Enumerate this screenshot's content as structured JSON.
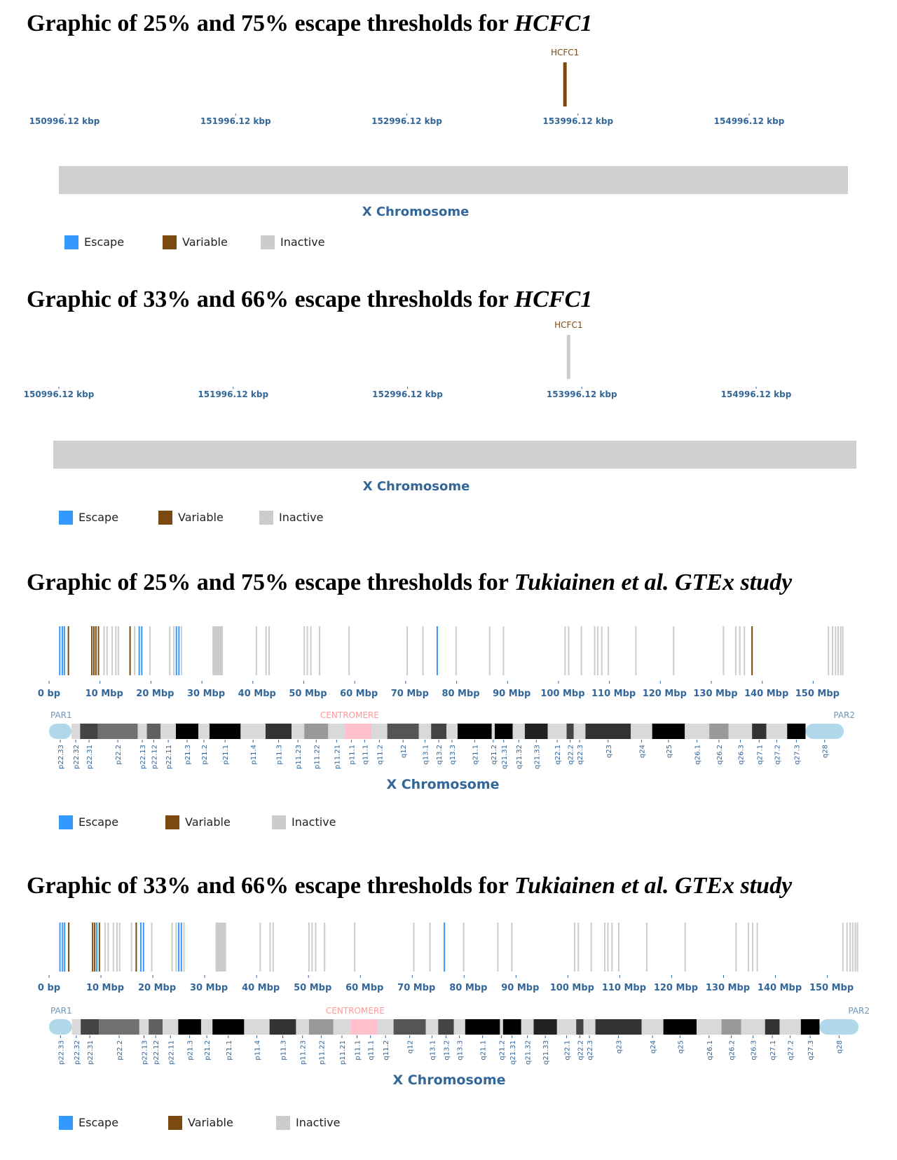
{
  "colors": {
    "escape": "#3399ff",
    "variable": "#7a4a10",
    "inactive": "#cccccc",
    "axis_text": "#336699",
    "chrom_bar": "#d0d0d0",
    "par": "#b0d8ea",
    "centromere": "#ffc0cb",
    "centromere_text": "#ff9999",
    "par_text": "#6f97b8"
  },
  "legend": {
    "escape": "Escape",
    "variable": "Variable",
    "inactive": "Inactive"
  },
  "chromosome_label": "X Chromosome",
  "panels": [
    {
      "title_pre": "Graphic of 25% and 75% escape thresholds for ",
      "title_em": "HCFC1",
      "gene_label": "HCFC1"
    },
    {
      "title_pre": "Graphic of 33% and 66% escape thresholds for ",
      "title_em": "HCFC1",
      "gene_label": "HCFC1"
    },
    {
      "title_pre": "Graphic of 25% and 75% escape thresholds for ",
      "title_em": "Tukiainen et al. GTEx study"
    },
    {
      "title_pre": "Graphic of 33% and 66% escape thresholds for ",
      "title_em": "Tukiainen et al. GTEx study"
    }
  ],
  "chart_data": [
    {
      "type": "ideogram",
      "view": "zoomed",
      "x_ticks": [
        "150996.12 kbp",
        "151996.12 kbp",
        "152996.12 kbp",
        "153996.12 kbp",
        "154996.12 kbp"
      ],
      "x_tick_values_kbp": [
        150996.12,
        151996.12,
        152996.12,
        153996.12,
        154996.12
      ],
      "genes": [
        {
          "name": "HCFC1",
          "position_kbp": 153920,
          "status": "variable"
        }
      ]
    },
    {
      "type": "ideogram",
      "view": "zoomed",
      "x_ticks": [
        "150996.12 kbp",
        "151996.12 kbp",
        "152996.12 kbp",
        "153996.12 kbp",
        "154996.12 kbp"
      ],
      "x_tick_values_kbp": [
        150996.12,
        151996.12,
        152996.12,
        153996.12,
        154996.12
      ],
      "genes": [
        {
          "name": "HCFC1",
          "position_kbp": 153920,
          "status": "inactive"
        }
      ]
    },
    {
      "type": "ideogram",
      "view": "whole",
      "x_ticks": [
        "0 bp",
        "10 Mbp",
        "20 Mbp",
        "30 Mbp",
        "40 Mbp",
        "50 Mbp",
        "60 Mbp",
        "70 Mbp",
        "80 Mbp",
        "90 Mbp",
        "100 Mbp",
        "110 Mbp",
        "120 Mbp",
        "130 Mbp",
        "140 Mbp",
        "150 Mbp"
      ],
      "region_labels": {
        "left": "PAR1",
        "center": "CENTROMERE",
        "right": "PAR2"
      },
      "markers_mbp": [
        [
          2.1,
          "escape"
        ],
        [
          2.6,
          "escape"
        ],
        [
          3.0,
          "escape"
        ],
        [
          3.8,
          "variable"
        ],
        [
          8.4,
          "variable"
        ],
        [
          8.8,
          "variable"
        ],
        [
          9.2,
          "variable"
        ],
        [
          9.7,
          "variable"
        ],
        [
          10.8,
          "inactive"
        ],
        [
          11.4,
          "inactive"
        ],
        [
          12.4,
          "inactive"
        ],
        [
          13.1,
          "inactive"
        ],
        [
          13.6,
          "inactive"
        ],
        [
          15.9,
          "variable"
        ],
        [
          16.8,
          "inactive"
        ],
        [
          17.7,
          "escape"
        ],
        [
          18.2,
          "escape"
        ],
        [
          19.8,
          "inactive"
        ],
        [
          23.7,
          "inactive"
        ],
        [
          24.5,
          "inactive"
        ],
        [
          25.0,
          "escape"
        ],
        [
          25.5,
          "escape"
        ],
        [
          26.0,
          "inactive"
        ],
        [
          33.1,
          "inactive"
        ],
        [
          40.7,
          "inactive"
        ],
        [
          42.6,
          "inactive"
        ],
        [
          43.2,
          "inactive"
        ],
        [
          50.1,
          "inactive"
        ],
        [
          50.7,
          "inactive"
        ],
        [
          51.4,
          "inactive"
        ],
        [
          53.1,
          "inactive"
        ],
        [
          58.9,
          "inactive"
        ],
        [
          70.3,
          "inactive"
        ],
        [
          73.4,
          "inactive"
        ],
        [
          76.2,
          "escape"
        ],
        [
          79.9,
          "inactive"
        ],
        [
          86.5,
          "inactive"
        ],
        [
          89.2,
          "inactive"
        ],
        [
          101.3,
          "inactive"
        ],
        [
          102.0,
          "inactive"
        ],
        [
          104.5,
          "inactive"
        ],
        [
          107.1,
          "inactive"
        ],
        [
          107.7,
          "inactive"
        ],
        [
          108.5,
          "inactive"
        ],
        [
          109.8,
          "inactive"
        ],
        [
          115.2,
          "inactive"
        ],
        [
          122.6,
          "inactive"
        ],
        [
          132.4,
          "inactive"
        ],
        [
          134.8,
          "inactive"
        ],
        [
          135.6,
          "inactive"
        ],
        [
          136.5,
          "inactive"
        ],
        [
          138.0,
          "variable"
        ],
        [
          153.0,
          "inactive"
        ],
        [
          153.8,
          "inactive"
        ],
        [
          154.4,
          "inactive"
        ],
        [
          154.9,
          "inactive"
        ],
        [
          155.4,
          "inactive"
        ],
        [
          155.8,
          "inactive"
        ]
      ],
      "bands": [
        "p22.33",
        "p22.32",
        "p22.31",
        "p22.2",
        "p22.13",
        "p22.12",
        "p22.11",
        "p21.3",
        "p21.2",
        "p21.1",
        "p11.4",
        "p11.3",
        "p11.23",
        "p11.22",
        "p11.21",
        "p11.1",
        "q11.1",
        "q11.2",
        "q12",
        "q13.1",
        "q13.2",
        "q13.3",
        "q21.1",
        "q21.2",
        "q21.31",
        "q21.32",
        "q21.33",
        "q22.1",
        "q22.2",
        "q22.3",
        "q23",
        "q24",
        "q25",
        "q26.1",
        "q26.2",
        "q26.3",
        "q27.1",
        "q27.2",
        "q27.3",
        "q28"
      ]
    },
    {
      "type": "ideogram",
      "view": "whole",
      "x_ticks": [
        "0 bp",
        "10 Mbp",
        "20 Mbp",
        "30 Mbp",
        "40 Mbp",
        "50 Mbp",
        "60 Mbp",
        "70 Mbp",
        "80 Mbp",
        "90 Mbp",
        "100 Mbp",
        "110 Mbp",
        "120 Mbp",
        "130 Mbp",
        "140 Mbp",
        "150 Mbp"
      ],
      "region_labels": {
        "left": "PAR1",
        "center": "CENTROMERE",
        "right": "PAR2"
      },
      "markers_mbp": [
        [
          2.1,
          "escape"
        ],
        [
          2.6,
          "escape"
        ],
        [
          3.0,
          "escape"
        ],
        [
          3.8,
          "variable"
        ],
        [
          8.4,
          "variable"
        ],
        [
          8.8,
          "variable"
        ],
        [
          9.2,
          "escape"
        ],
        [
          9.7,
          "variable"
        ],
        [
          10.8,
          "inactive"
        ],
        [
          11.4,
          "inactive"
        ],
        [
          12.4,
          "inactive"
        ],
        [
          13.1,
          "inactive"
        ],
        [
          13.6,
          "inactive"
        ],
        [
          15.9,
          "inactive"
        ],
        [
          16.8,
          "variable"
        ],
        [
          17.7,
          "escape"
        ],
        [
          18.2,
          "escape"
        ],
        [
          19.8,
          "inactive"
        ],
        [
          23.7,
          "inactive"
        ],
        [
          24.5,
          "inactive"
        ],
        [
          25.0,
          "escape"
        ],
        [
          25.5,
          "escape"
        ],
        [
          26.0,
          "inactive"
        ],
        [
          33.1,
          "inactive"
        ],
        [
          40.7,
          "inactive"
        ],
        [
          42.6,
          "inactive"
        ],
        [
          43.2,
          "inactive"
        ],
        [
          50.1,
          "inactive"
        ],
        [
          50.7,
          "inactive"
        ],
        [
          51.4,
          "inactive"
        ],
        [
          53.1,
          "inactive"
        ],
        [
          58.9,
          "inactive"
        ],
        [
          70.3,
          "inactive"
        ],
        [
          73.4,
          "inactive"
        ],
        [
          76.2,
          "escape"
        ],
        [
          79.9,
          "inactive"
        ],
        [
          86.5,
          "inactive"
        ],
        [
          89.2,
          "inactive"
        ],
        [
          101.3,
          "inactive"
        ],
        [
          102.0,
          "inactive"
        ],
        [
          104.5,
          "inactive"
        ],
        [
          107.1,
          "inactive"
        ],
        [
          107.7,
          "inactive"
        ],
        [
          108.5,
          "inactive"
        ],
        [
          109.8,
          "inactive"
        ],
        [
          115.2,
          "inactive"
        ],
        [
          122.6,
          "inactive"
        ],
        [
          132.4,
          "inactive"
        ],
        [
          134.8,
          "inactive"
        ],
        [
          135.6,
          "inactive"
        ],
        [
          136.5,
          "inactive"
        ],
        [
          153.0,
          "inactive"
        ],
        [
          153.8,
          "inactive"
        ],
        [
          154.4,
          "inactive"
        ],
        [
          154.9,
          "inactive"
        ],
        [
          155.4,
          "inactive"
        ],
        [
          155.8,
          "inactive"
        ]
      ],
      "bands": [
        "p22.33",
        "p22.32",
        "p22.31",
        "p22.2",
        "p22.13",
        "p22.12",
        "p22.11",
        "p21.3",
        "p21.2",
        "p21.1",
        "p11.4",
        "p11.3",
        "p11.23",
        "p11.22",
        "p11.21",
        "p11.1",
        "q11.1",
        "q11.2",
        "q12",
        "q13.1",
        "q13.2",
        "q13.3",
        "q21.1",
        "q21.2",
        "q21.31",
        "q21.32",
        "q21.33",
        "q22.1",
        "q22.2",
        "q22.3",
        "q23",
        "q24",
        "q25",
        "q26.1",
        "q26.2",
        "q26.3",
        "q27.1",
        "q27.2",
        "q27.3",
        "q28"
      ]
    }
  ]
}
